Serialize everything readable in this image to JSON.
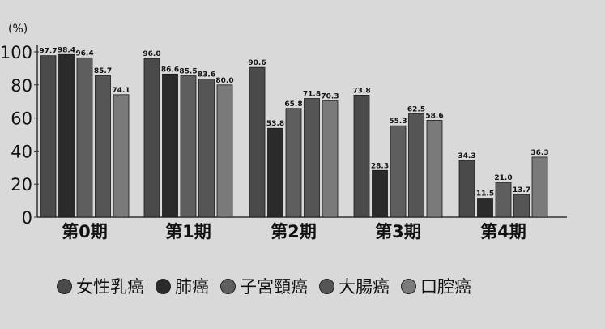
{
  "chart_data": {
    "type": "bar",
    "ylabel": "(%)",
    "ylim": [
      0,
      100
    ],
    "yticks": [
      0,
      20,
      40,
      60,
      80,
      100
    ],
    "categories": [
      "第0期",
      "第1期",
      "第2期",
      "第3期",
      "第4期"
    ],
    "series": [
      {
        "name": "女性乳癌",
        "color": "#4a4a4a",
        "values": [
          97.7,
          96.0,
          90.6,
          73.8,
          34.3
        ],
        "labels": [
          "97.7",
          "96.0",
          "90.6",
          "73.8",
          "34.3"
        ]
      },
      {
        "name": "肺癌",
        "color": "#2a2a2a",
        "values": [
          98.4,
          86.6,
          53.8,
          28.3,
          11.5
        ],
        "labels": [
          "98.4",
          "86.6",
          "53.8",
          "28.3",
          "11.5"
        ]
      },
      {
        "name": "子宮頸癌",
        "color": "#5e5e5e",
        "values": [
          96.4,
          85.5,
          65.8,
          55.3,
          21.0
        ],
        "labels": [
          "96.4",
          "85.5",
          "65.8",
          "55.3",
          "21.0"
        ]
      },
      {
        "name": "大腸癌",
        "color": "#555555",
        "values": [
          85.7,
          83.6,
          71.8,
          62.5,
          13.7
        ],
        "labels": [
          "85.7",
          "83.6",
          "71.8",
          "62.5",
          "13.7"
        ]
      },
      {
        "name": "口腔癌",
        "color": "#7a7a7a",
        "values": [
          74.1,
          80.0,
          70.3,
          58.6,
          36.3
        ],
        "labels": [
          "74.1",
          "80.0",
          "70.3",
          "58.6",
          "36.3"
        ]
      }
    ]
  },
  "legend": [
    "女性乳癌",
    "肺癌",
    "子宮頸癌",
    "大腸癌",
    "口腔癌"
  ]
}
